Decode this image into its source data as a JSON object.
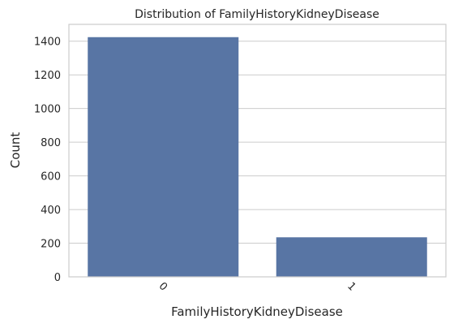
{
  "chart_data": {
    "type": "bar",
    "title": "Distribution of FamilyHistoryKidneyDisease",
    "xlabel": "FamilyHistoryKidneyDisease",
    "ylabel": "Count",
    "categories": [
      "0",
      "1"
    ],
    "values": [
      1424,
      235
    ],
    "ylim": [
      0,
      1500
    ],
    "yticks": [
      0,
      200,
      400,
      600,
      800,
      1000,
      1200,
      1400
    ],
    "ytick_labels": [
      "0",
      "200",
      "400",
      "600",
      "800",
      "1000",
      "1200",
      "1400"
    ],
    "xtick_rotation": "45 degrees",
    "grid": true,
    "bar_color": "#5875a4"
  }
}
